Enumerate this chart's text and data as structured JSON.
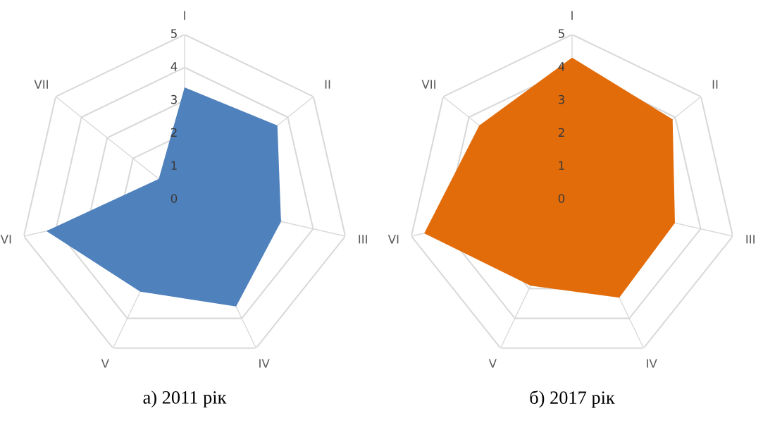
{
  "chart_data": [
    {
      "type": "radar",
      "title": "а) 2011 рік",
      "categories": [
        "I",
        "II",
        "III",
        "IV",
        "V",
        "VI",
        "VII"
      ],
      "ylim": [
        0,
        5
      ],
      "yticks": [
        0,
        1,
        2,
        3,
        4,
        5
      ],
      "grid": true,
      "series": [
        {
          "color": "#4f81bd",
          "values": [
            3.4,
            3.6,
            3.0,
            3.6,
            3.1,
            4.3,
            1.0
          ]
        }
      ]
    },
    {
      "type": "radar",
      "title": "б) 2017 рік",
      "categories": [
        "I",
        "II",
        "III",
        "IV",
        "V",
        "VI",
        "VII"
      ],
      "ylim": [
        0,
        5
      ],
      "yticks": [
        0,
        1,
        2,
        3,
        4,
        5
      ],
      "grid": true,
      "series": [
        {
          "color": "#e36c0a",
          "values": [
            4.3,
            3.9,
            3.2,
            3.3,
            2.9,
            4.6,
            3.6
          ]
        }
      ]
    }
  ]
}
